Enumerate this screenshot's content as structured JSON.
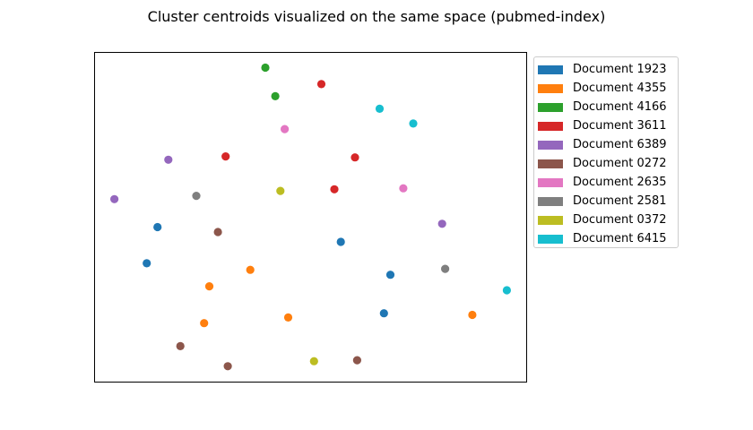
{
  "chart_data": {
    "type": "scatter",
    "title": "Cluster centroids visualized on the same space (pubmed-index)",
    "xlabel": "",
    "ylabel": "",
    "xlim": [
      0,
      100
    ],
    "ylim": [
      0,
      100
    ],
    "grid": false,
    "axis_ticks": false,
    "legend_placement": "outside-top-right",
    "series": [
      {
        "name": "Document 1923",
        "color": "#1f77b4",
        "points": [
          [
            14.5,
            47.0
          ],
          [
            12.0,
            36.0
          ],
          [
            57.0,
            42.5
          ],
          [
            68.5,
            32.5
          ],
          [
            67.0,
            20.8
          ]
        ]
      },
      {
        "name": "Document 4355",
        "color": "#ff7f0e",
        "points": [
          [
            36.0,
            34.0
          ],
          [
            26.5,
            29.0
          ],
          [
            25.3,
            17.8
          ],
          [
            44.8,
            19.5
          ],
          [
            87.5,
            20.3
          ]
        ]
      },
      {
        "name": "Document 4166",
        "color": "#2ca02c",
        "points": [
          [
            39.5,
            95.5
          ],
          [
            41.8,
            86.8
          ]
        ]
      },
      {
        "name": "Document 3611",
        "color": "#d62728",
        "points": [
          [
            52.5,
            90.5
          ],
          [
            30.3,
            68.5
          ],
          [
            60.3,
            68.2
          ],
          [
            55.5,
            58.5
          ]
        ]
      },
      {
        "name": "Document 6389",
        "color": "#9467bd",
        "points": [
          [
            17.0,
            67.5
          ],
          [
            4.5,
            55.5
          ],
          [
            80.5,
            48.0
          ]
        ]
      },
      {
        "name": "Document 0272",
        "color": "#8c564b",
        "points": [
          [
            28.5,
            45.5
          ],
          [
            19.8,
            10.8
          ],
          [
            30.8,
            4.7
          ],
          [
            60.8,
            6.5
          ]
        ]
      },
      {
        "name": "Document 2635",
        "color": "#e377c2",
        "points": [
          [
            44.0,
            76.8
          ],
          [
            71.5,
            58.8
          ]
        ]
      },
      {
        "name": "Document 2581",
        "color": "#7f7f7f",
        "points": [
          [
            23.5,
            56.5
          ],
          [
            81.2,
            34.3
          ]
        ]
      },
      {
        "name": "Document 0372",
        "color": "#bcbd22",
        "points": [
          [
            43.0,
            58.0
          ],
          [
            50.8,
            6.2
          ]
        ]
      },
      {
        "name": "Document 6415",
        "color": "#17becf",
        "points": [
          [
            66.0,
            83.0
          ],
          [
            73.8,
            78.5
          ],
          [
            95.5,
            27.8
          ]
        ]
      }
    ]
  }
}
